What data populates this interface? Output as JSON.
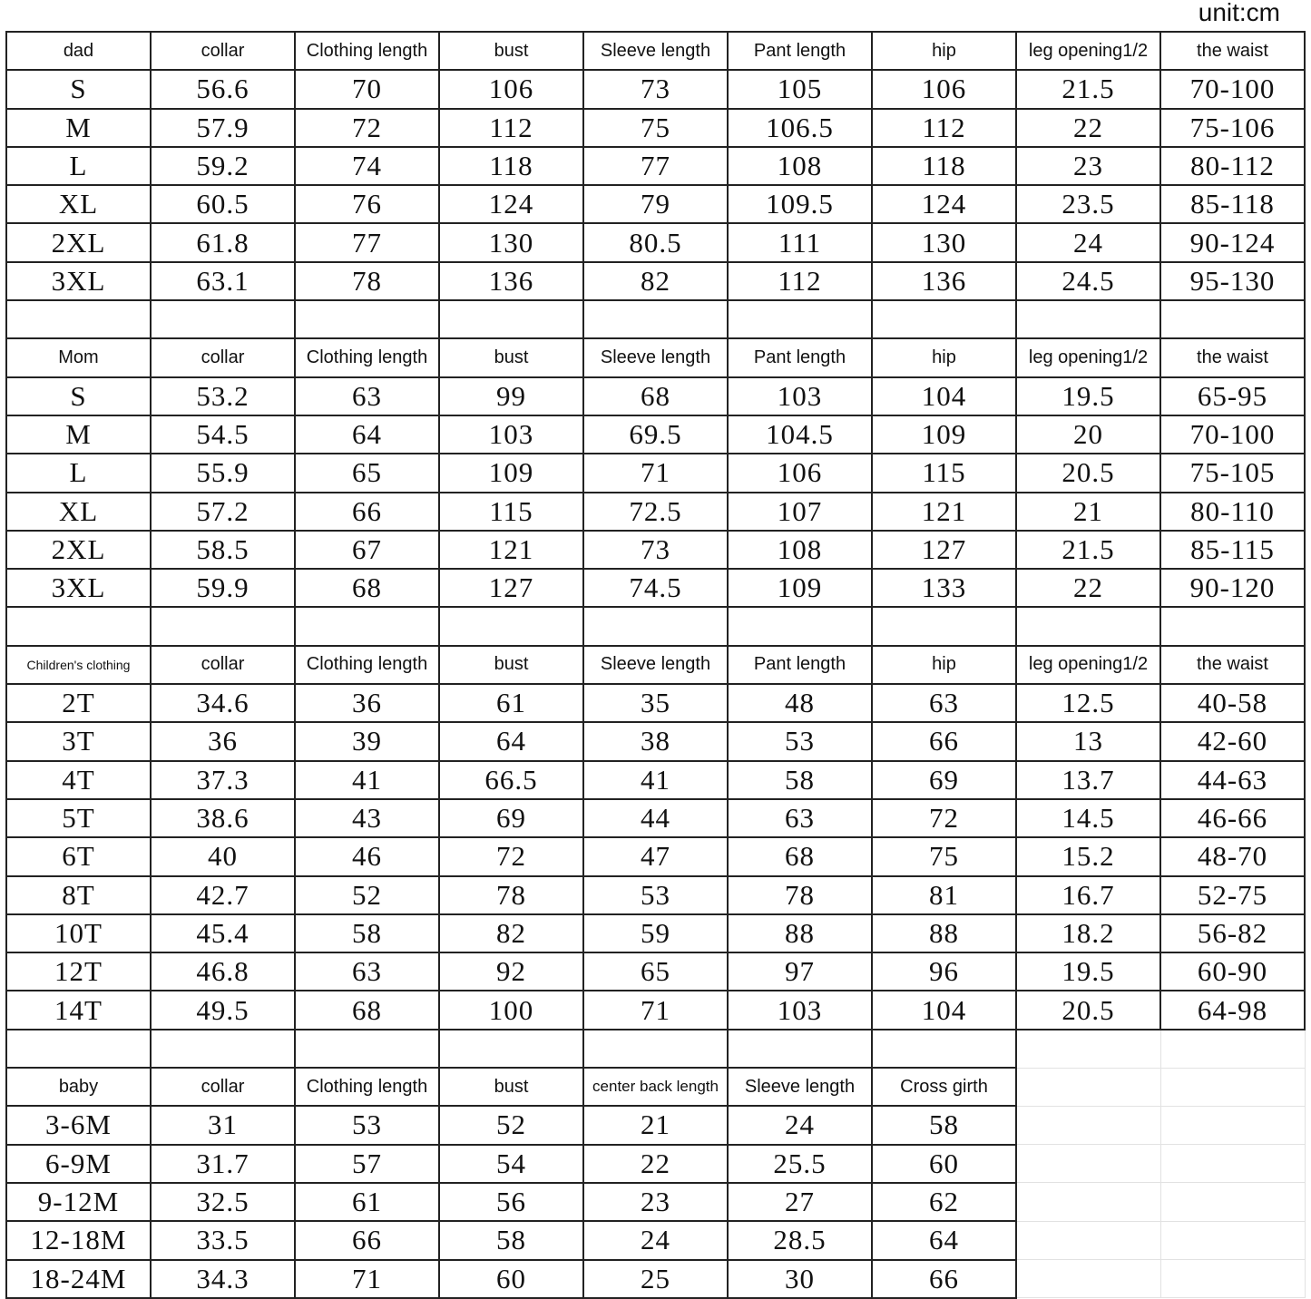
{
  "unit_label": "unit:cm",
  "sections": [
    {
      "headers": [
        "dad",
        "collar",
        "Clothing length",
        "bust",
        "Sleeve length",
        "Pant length",
        "hip",
        "leg opening1/2",
        "the waist"
      ],
      "rows": [
        [
          "S",
          "56.6",
          "70",
          "106",
          "73",
          "105",
          "106",
          "21.5",
          "70-100"
        ],
        [
          "M",
          "57.9",
          "72",
          "112",
          "75",
          "106.5",
          "112",
          "22",
          "75-106"
        ],
        [
          "L",
          "59.2",
          "74",
          "118",
          "77",
          "108",
          "118",
          "23",
          "80-112"
        ],
        [
          "XL",
          "60.5",
          "76",
          "124",
          "79",
          "109.5",
          "124",
          "23.5",
          "85-118"
        ],
        [
          "2XL",
          "61.8",
          "77",
          "130",
          "80.5",
          "111",
          "130",
          "24",
          "90-124"
        ],
        [
          "3XL",
          "63.1",
          "78",
          "136",
          "82",
          "112",
          "136",
          "24.5",
          "95-130"
        ]
      ]
    },
    {
      "headers": [
        "Mom",
        "collar",
        "Clothing length",
        "bust",
        "Sleeve length",
        "Pant length",
        "hip",
        "leg opening1/2",
        "the waist"
      ],
      "rows": [
        [
          "S",
          "53.2",
          "63",
          "99",
          "68",
          "103",
          "104",
          "19.5",
          "65-95"
        ],
        [
          "M",
          "54.5",
          "64",
          "103",
          "69.5",
          "104.5",
          "109",
          "20",
          "70-100"
        ],
        [
          "L",
          "55.9",
          "65",
          "109",
          "71",
          "106",
          "115",
          "20.5",
          "75-105"
        ],
        [
          "XL",
          "57.2",
          "66",
          "115",
          "72.5",
          "107",
          "121",
          "21",
          "80-110"
        ],
        [
          "2XL",
          "58.5",
          "67",
          "121",
          "73",
          "108",
          "127",
          "21.5",
          "85-115"
        ],
        [
          "3XL",
          "59.9",
          "68",
          "127",
          "74.5",
          "109",
          "133",
          "22",
          "90-120"
        ]
      ]
    },
    {
      "headers": [
        "Children's clothing",
        "collar",
        "Clothing length",
        "bust",
        "Sleeve length",
        "Pant length",
        "hip",
        "leg opening1/2",
        "the waist"
      ],
      "rows": [
        [
          "2T",
          "34.6",
          "36",
          "61",
          "35",
          "48",
          "63",
          "12.5",
          "40-58"
        ],
        [
          "3T",
          "36",
          "39",
          "64",
          "38",
          "53",
          "66",
          "13",
          "42-60"
        ],
        [
          "4T",
          "37.3",
          "41",
          "66.5",
          "41",
          "58",
          "69",
          "13.7",
          "44-63"
        ],
        [
          "5T",
          "38.6",
          "43",
          "69",
          "44",
          "63",
          "72",
          "14.5",
          "46-66"
        ],
        [
          "6T",
          "40",
          "46",
          "72",
          "47",
          "68",
          "75",
          "15.2",
          "48-70"
        ],
        [
          "8T",
          "42.7",
          "52",
          "78",
          "53",
          "78",
          "81",
          "16.7",
          "52-75"
        ],
        [
          "10T",
          "45.4",
          "58",
          "82",
          "59",
          "88",
          "88",
          "18.2",
          "56-82"
        ],
        [
          "12T",
          "46.8",
          "63",
          "92",
          "65",
          "97",
          "96",
          "19.5",
          "60-90"
        ],
        [
          "14T",
          "49.5",
          "68",
          "100",
          "71",
          "103",
          "104",
          "20.5",
          "64-98"
        ]
      ]
    },
    {
      "headers": [
        "baby",
        "collar",
        "Clothing length",
        "bust",
        "center back length",
        "Sleeve length",
        "Cross girth"
      ],
      "rows": [
        [
          "3-6M",
          "31",
          "53",
          "52",
          "21",
          "24",
          "58"
        ],
        [
          "6-9M",
          "31.7",
          "57",
          "54",
          "22",
          "25.5",
          "60"
        ],
        [
          "9-12M",
          "32.5",
          "61",
          "56",
          "23",
          "27",
          "62"
        ],
        [
          "12-18M",
          "33.5",
          "66",
          "58",
          "24",
          "28.5",
          "64"
        ],
        [
          "18-24M",
          "34.3",
          "71",
          "60",
          "25",
          "30",
          "66"
        ]
      ]
    }
  ]
}
